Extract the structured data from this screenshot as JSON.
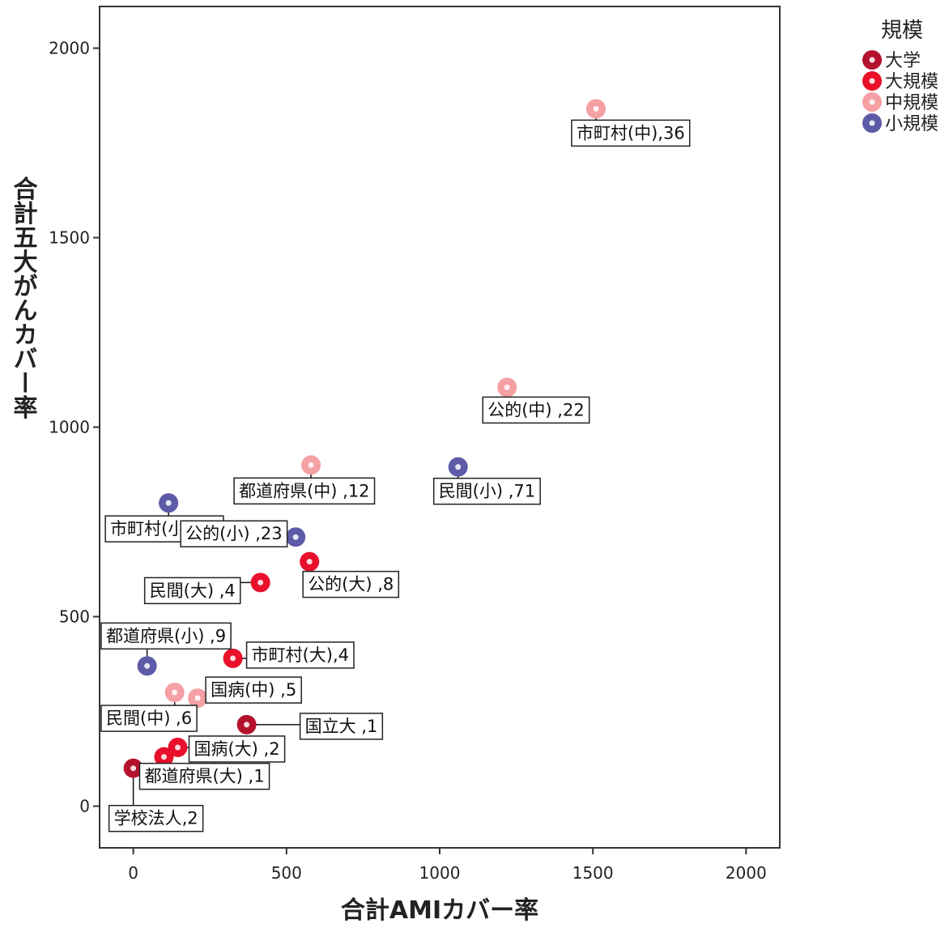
{
  "chart_data": {
    "type": "scatter",
    "xlabel": "合計AMIカバー率",
    "ylabel": "合計五大がんカバー率",
    "xlim": [
      -110,
      2110
    ],
    "ylim": [
      -110,
      2110
    ],
    "xticks": [
      0,
      500,
      1000,
      1500,
      2000
    ],
    "yticks": [
      0,
      500,
      1000,
      1500,
      2000
    ],
    "grid": false,
    "legend_position": "top-right",
    "legend": {
      "title": "規模",
      "entries": [
        {
          "label": "大学",
          "color": "#b5122e"
        },
        {
          "label": "大規模",
          "color": "#e8102a"
        },
        {
          "label": "中規模",
          "color": "#f4a0a4"
        },
        {
          "label": "小規模",
          "color": "#5d5aa8"
        }
      ]
    },
    "points": [
      {
        "x": 1510,
        "y": 1840,
        "group": "中規模",
        "label": "市町村(中),36"
      },
      {
        "x": 1220,
        "y": 1105,
        "group": "中規模",
        "label": "公的(中) ,22"
      },
      {
        "x": 1060,
        "y": 895,
        "group": "小規模",
        "label": "民間(小) ,71"
      },
      {
        "x": 580,
        "y": 900,
        "group": "中規模",
        "label": "都道府県(中) ,12"
      },
      {
        "x": 115,
        "y": 800,
        "group": "小規模",
        "label": "市町村(小),30"
      },
      {
        "x": 530,
        "y": 710,
        "group": "小規模",
        "label": "公的(小) ,23"
      },
      {
        "x": 575,
        "y": 645,
        "group": "大規模",
        "label": "公的(大) ,8"
      },
      {
        "x": 415,
        "y": 590,
        "group": "大規模",
        "label": "民間(大) ,4"
      },
      {
        "x": 45,
        "y": 370,
        "group": "小規模",
        "label": "都道府県(小) ,9"
      },
      {
        "x": 325,
        "y": 390,
        "group": "大規模",
        "label": "市町村(大),4"
      },
      {
        "x": 135,
        "y": 300,
        "group": "中規模",
        "label": "民間(中) ,6"
      },
      {
        "x": 210,
        "y": 285,
        "group": "中規模",
        "label": "国病(中) ,5"
      },
      {
        "x": 370,
        "y": 215,
        "group": "大学",
        "label": "国立大 ,1"
      },
      {
        "x": 145,
        "y": 155,
        "group": "大規模",
        "label": "国病(大) ,2"
      },
      {
        "x": 100,
        "y": 130,
        "group": "大規模",
        "label": "都道府県(大) ,1"
      },
      {
        "x": 0,
        "y": 100,
        "group": "大学",
        "label": "学校法人,2"
      }
    ]
  }
}
